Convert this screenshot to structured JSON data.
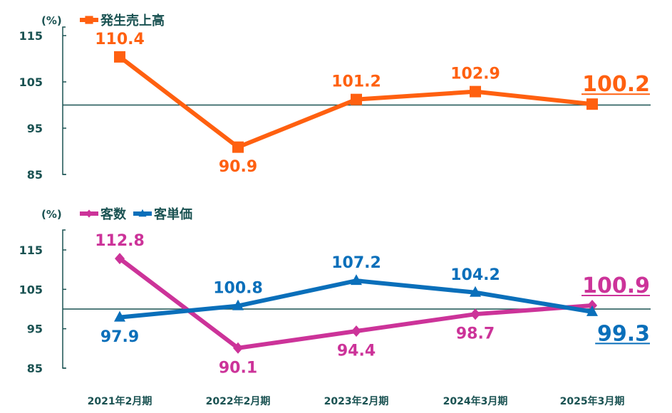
{
  "colors": {
    "axis": "#1a5252",
    "orange": "#ff6010",
    "magenta": "#cc3399",
    "blue": "#0a6fba"
  },
  "chart_data": [
    {
      "type": "line",
      "unit_label": "(%)",
      "ylim": [
        85,
        115
      ],
      "yticks": [
        85,
        95,
        105,
        115
      ],
      "reference_line": 100,
      "categories": [
        "2021年2月期",
        "2022年2月期",
        "2023年2月期",
        "2024年3月期",
        "2025年3月期"
      ],
      "series": [
        {
          "name": "発生売上高",
          "marker": "square",
          "color": "#ff6010",
          "values": [
            110.4,
            90.9,
            101.2,
            102.9,
            100.2
          ],
          "labels": [
            "110.4",
            "90.9",
            "101.2",
            "102.9",
            "100.2"
          ]
        }
      ],
      "legend": "top-left"
    },
    {
      "type": "line",
      "unit_label": "(%)",
      "ylim": [
        85,
        120
      ],
      "yticks": [
        85,
        95,
        105,
        115
      ],
      "reference_line": 100,
      "categories": [
        "2021年2月期",
        "2022年2月期",
        "2023年2月期",
        "2024年3月期",
        "2025年3月期"
      ],
      "series": [
        {
          "name": "客数",
          "marker": "diamond",
          "color": "#cc3399",
          "values": [
            112.8,
            90.1,
            94.4,
            98.7,
            100.9
          ],
          "labels": [
            "112.8",
            "90.1",
            "94.4",
            "98.7",
            "100.9"
          ]
        },
        {
          "name": "客単価",
          "marker": "triangle",
          "color": "#0a6fba",
          "values": [
            97.9,
            100.8,
            107.2,
            104.2,
            99.3
          ],
          "labels": [
            "97.9",
            "100.8",
            "107.2",
            "104.2",
            "99.3"
          ]
        }
      ],
      "legend": "top-left"
    }
  ]
}
